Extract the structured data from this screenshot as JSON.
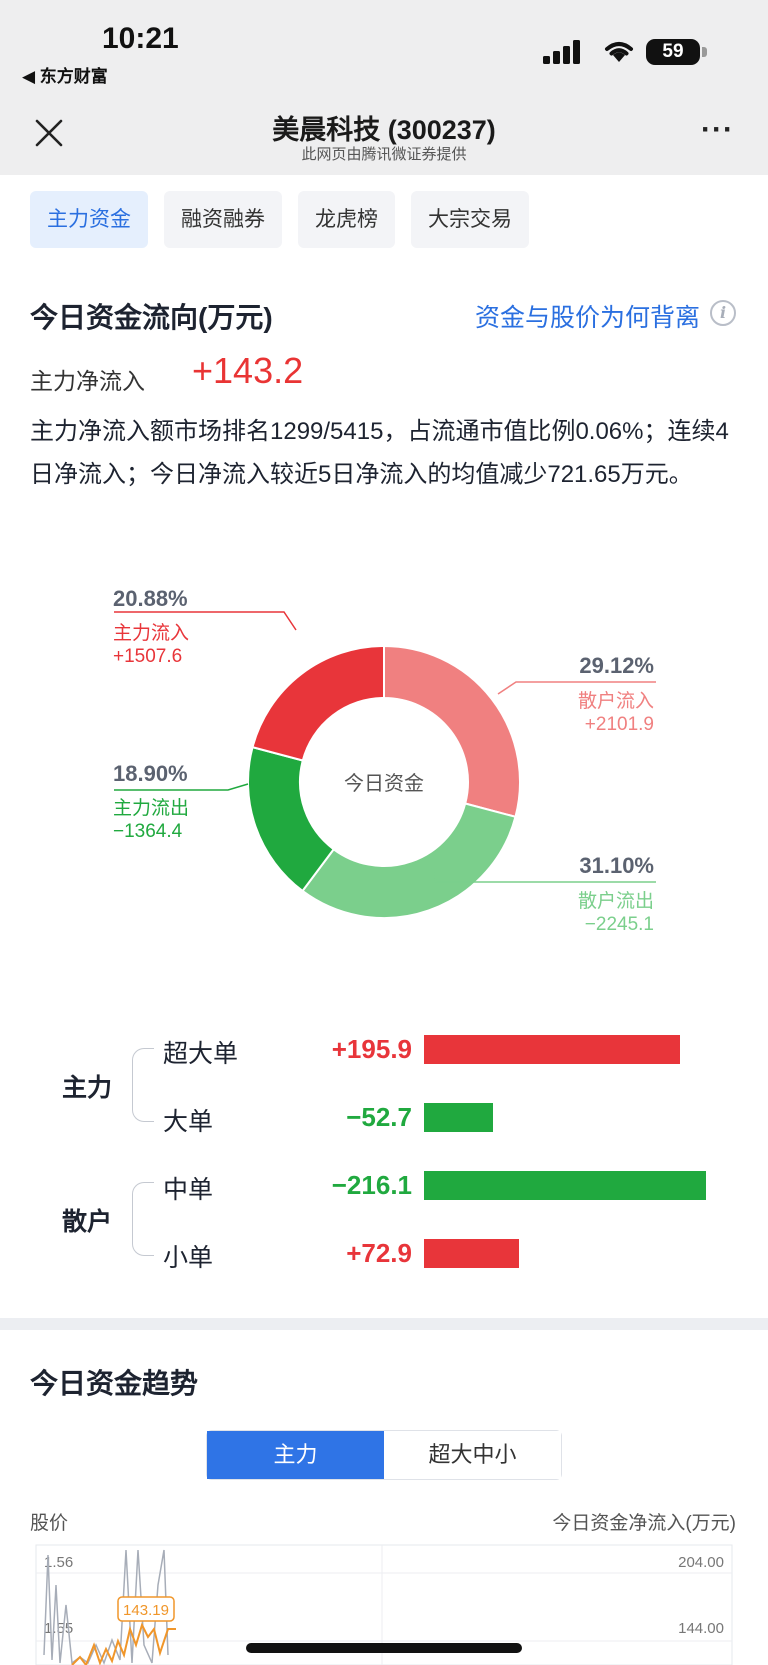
{
  "status_bar": {
    "time": "10:21",
    "back_app": "◀ 东方财富",
    "battery": "59"
  },
  "nav": {
    "title": "美晨科技 (300237)",
    "subtitle": "此网页由腾讯微证券提供"
  },
  "tabs": [
    "主力资金",
    "融资融券",
    "龙虎榜",
    "大宗交易"
  ],
  "flow": {
    "title": "今日资金流向(万元)",
    "why_link": "资金与股价为何背离",
    "net_label": "主力净流入",
    "net_value": "+143.2",
    "summary": "主力净流入额市场排名1299/5415，占流通市值比例0.06%；连续4日净流入；今日净流入较近5日净流入的均值减少721.65万元。"
  },
  "donut": {
    "center_label": "今日资金",
    "segments": [
      {
        "pct": "29.12%",
        "name": "散户流入",
        "value": "+2101.9",
        "share": 29.12,
        "color": "#f08080"
      },
      {
        "pct": "31.10%",
        "name": "散户流出",
        "value": "−2245.1",
        "share": 31.1,
        "color": "#7bcf8c"
      },
      {
        "pct": "18.90%",
        "name": "主力流出",
        "value": "−1364.4",
        "share": 18.9,
        "color": "#20a93f"
      },
      {
        "pct": "20.88%",
        "name": "主力流入",
        "value": "+1507.6",
        "share": 20.88,
        "color": "#e8353a"
      }
    ]
  },
  "breakdown": {
    "groups": [
      "主力",
      "散户"
    ],
    "rows": [
      {
        "label": "超大单",
        "value": "+195.9",
        "amount": 195.9,
        "color": "#e8353a"
      },
      {
        "label": "大单",
        "value": "−52.7",
        "amount": -52.7,
        "color": "#20a93f"
      },
      {
        "label": "中单",
        "value": "−216.1",
        "amount": -216.1,
        "color": "#20a93f"
      },
      {
        "label": "小单",
        "value": "+72.9",
        "amount": 72.9,
        "color": "#e8353a"
      }
    ]
  },
  "trend": {
    "title": "今日资金趋势",
    "toggle": [
      "主力",
      "超大中小"
    ],
    "left_axis_title": "股价",
    "right_axis_title": "今日资金净流入(万元)",
    "left_ticks": [
      "1.56",
      "1.55"
    ],
    "right_ticks": [
      "204.00",
      "144.00"
    ],
    "tooltip": "143.19"
  }
}
